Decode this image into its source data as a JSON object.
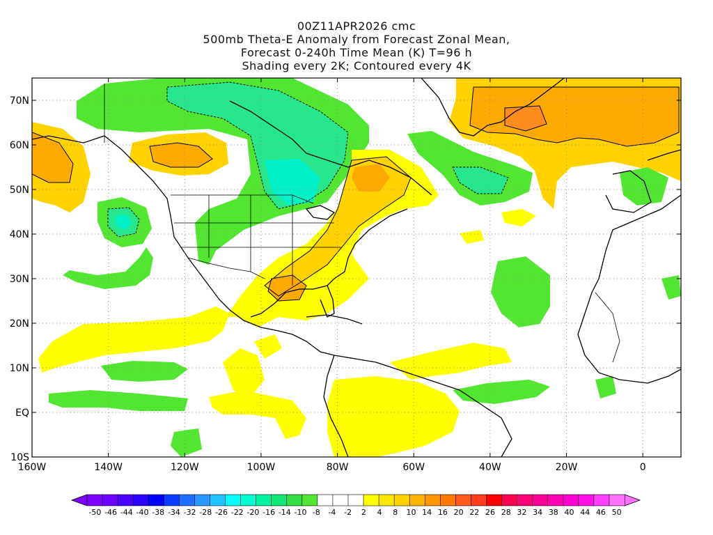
{
  "titles": {
    "line1": "00Z11APR2026 cmc",
    "line2": "500mb Theta-E Anomaly from Forecast Zonal Mean,",
    "line3": "Forecast 0-240h Time Mean (K) T=96 h",
    "line4": "Shading every 2K; Contoured every 4K"
  },
  "axes": {
    "lon_labels": [
      "160W",
      "140W",
      "120W",
      "100W",
      "80W",
      "60W",
      "40W",
      "20W",
      "0"
    ],
    "lat_labels": [
      "70N",
      "60N",
      "50N",
      "40N",
      "30N",
      "20N",
      "10N",
      "EQ",
      "10S"
    ],
    "lon_values": [
      -160,
      -140,
      -120,
      -100,
      -80,
      -60,
      -40,
      -20,
      0
    ],
    "lat_values": [
      70,
      60,
      50,
      40,
      30,
      20,
      10,
      0,
      -10
    ],
    "lon_range": [
      -160,
      10
    ],
    "lat_range": [
      -10,
      75
    ]
  },
  "colorbar": {
    "labels": [
      "-50",
      "-46",
      "-44",
      "-40",
      "-38",
      "-34",
      "-32",
      "-28",
      "-26",
      "-22",
      "-20",
      "-16",
      "-14",
      "-10",
      "-8",
      "-4",
      "-2",
      "2",
      "4",
      "8",
      "10",
      "14",
      "16",
      "20",
      "22",
      "26",
      "28",
      "32",
      "34",
      "38",
      "40",
      "44",
      "46",
      "50"
    ],
    "colors": [
      "#7d00ff",
      "#6a00ff",
      "#4a00ff",
      "#2a00ff",
      "#0000ff",
      "#0a3cff",
      "#1e6eff",
      "#2a96ff",
      "#1ec3ff",
      "#00ffff",
      "#00ffd2",
      "#00f5a0",
      "#10e878",
      "#34de44",
      "#52e632",
      "#ffffff",
      "#ffffff",
      "#ffffff",
      "#ffff00",
      "#ffe800",
      "#ffd200",
      "#ffb400",
      "#ff9600",
      "#ff7800",
      "#ff5a1e",
      "#ff3c1e",
      "#ff0000",
      "#ff0050",
      "#ff0078",
      "#ff0096",
      "#ff00b4",
      "#ff00d2",
      "#ff10e8",
      "#ff40ff",
      "#ff70ff"
    ],
    "left_arrow_color": "#7d00ff",
    "right_arrow_color": "#ff70ff"
  },
  "shading_colors": {
    "neg_8": "#52e632",
    "neg_12": "#28e68c",
    "neg_16": "#00f0c8",
    "pos_4": "#ffff00",
    "pos_8": "#ffd200",
    "pos_12": "#ffaa00",
    "pos_16": "#ff8c1e"
  }
}
